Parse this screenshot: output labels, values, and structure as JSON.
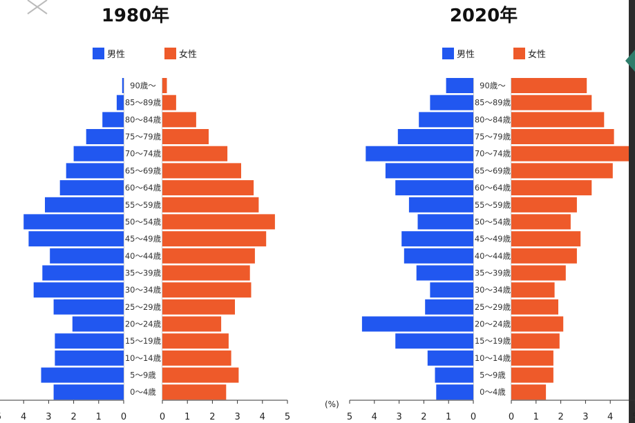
{
  "chart_data": [
    {
      "type": "bar",
      "title": "1980年",
      "orientation": "horizontal-pyramid",
      "categories": [
        "0～4歳",
        "5～9歳",
        "10～14歳",
        "15～19歳",
        "20～24歳",
        "25～29歳",
        "30～34歳",
        "35～39歳",
        "40～44歳",
        "45～49歳",
        "50～54歳",
        "55～59歳",
        "60～64歳",
        "65～69歳",
        "70～74歳",
        "75～79歳",
        "80～84歳",
        "85～89歳",
        "90歳～"
      ],
      "series": [
        {
          "name": "男性",
          "color": "#2157f0",
          "values": [
            2.8,
            3.3,
            2.75,
            2.75,
            2.05,
            2.8,
            3.6,
            3.25,
            2.95,
            3.8,
            4.0,
            3.15,
            2.55,
            2.3,
            2.0,
            1.5,
            0.85,
            0.28,
            0.06
          ]
        },
        {
          "name": "女性",
          "color": "#ee5a2a",
          "values": [
            2.55,
            3.05,
            2.75,
            2.65,
            2.35,
            2.9,
            3.55,
            3.5,
            3.7,
            4.15,
            4.5,
            3.85,
            3.65,
            3.15,
            2.6,
            1.85,
            1.35,
            0.55,
            0.18
          ]
        }
      ],
      "xlim": [
        0,
        5
      ],
      "ticks": [
        "0",
        "1",
        "2",
        "3",
        "4",
        "5"
      ],
      "legend": "top-center"
    },
    {
      "type": "bar",
      "title": "2020年",
      "orientation": "horizontal-pyramid",
      "categories": [
        "0～4歳",
        "5～9歳",
        "10～14歳",
        "15～19歳",
        "20～24歳",
        "25～29歳",
        "30～34歳",
        "35～39歳",
        "40～44歳",
        "45～49歳",
        "50～54歳",
        "55～59歳",
        "60～64歳",
        "65～69歳",
        "70～74歳",
        "75～79歳",
        "80～84歳",
        "85～89歳",
        "90歳～"
      ],
      "series": [
        {
          "name": "男性",
          "color": "#2157f0",
          "values": [
            1.5,
            1.55,
            1.85,
            3.15,
            4.5,
            1.95,
            1.75,
            2.3,
            2.8,
            2.9,
            2.25,
            2.6,
            3.15,
            3.55,
            4.35,
            3.05,
            2.2,
            1.75,
            1.1
          ]
        },
        {
          "name": "女性",
          "color": "#ee5a2a",
          "values": [
            1.4,
            1.7,
            1.7,
            1.95,
            2.1,
            1.9,
            1.75,
            2.2,
            2.65,
            2.8,
            2.4,
            2.65,
            3.25,
            4.1,
            4.75,
            4.15,
            3.75,
            3.25,
            3.05
          ]
        }
      ],
      "xlim": [
        0,
        5
      ],
      "ticks": [
        "0",
        "1",
        "2",
        "3",
        "4",
        "5"
      ],
      "unit_label": "(%)",
      "legend": "top-center"
    }
  ]
}
